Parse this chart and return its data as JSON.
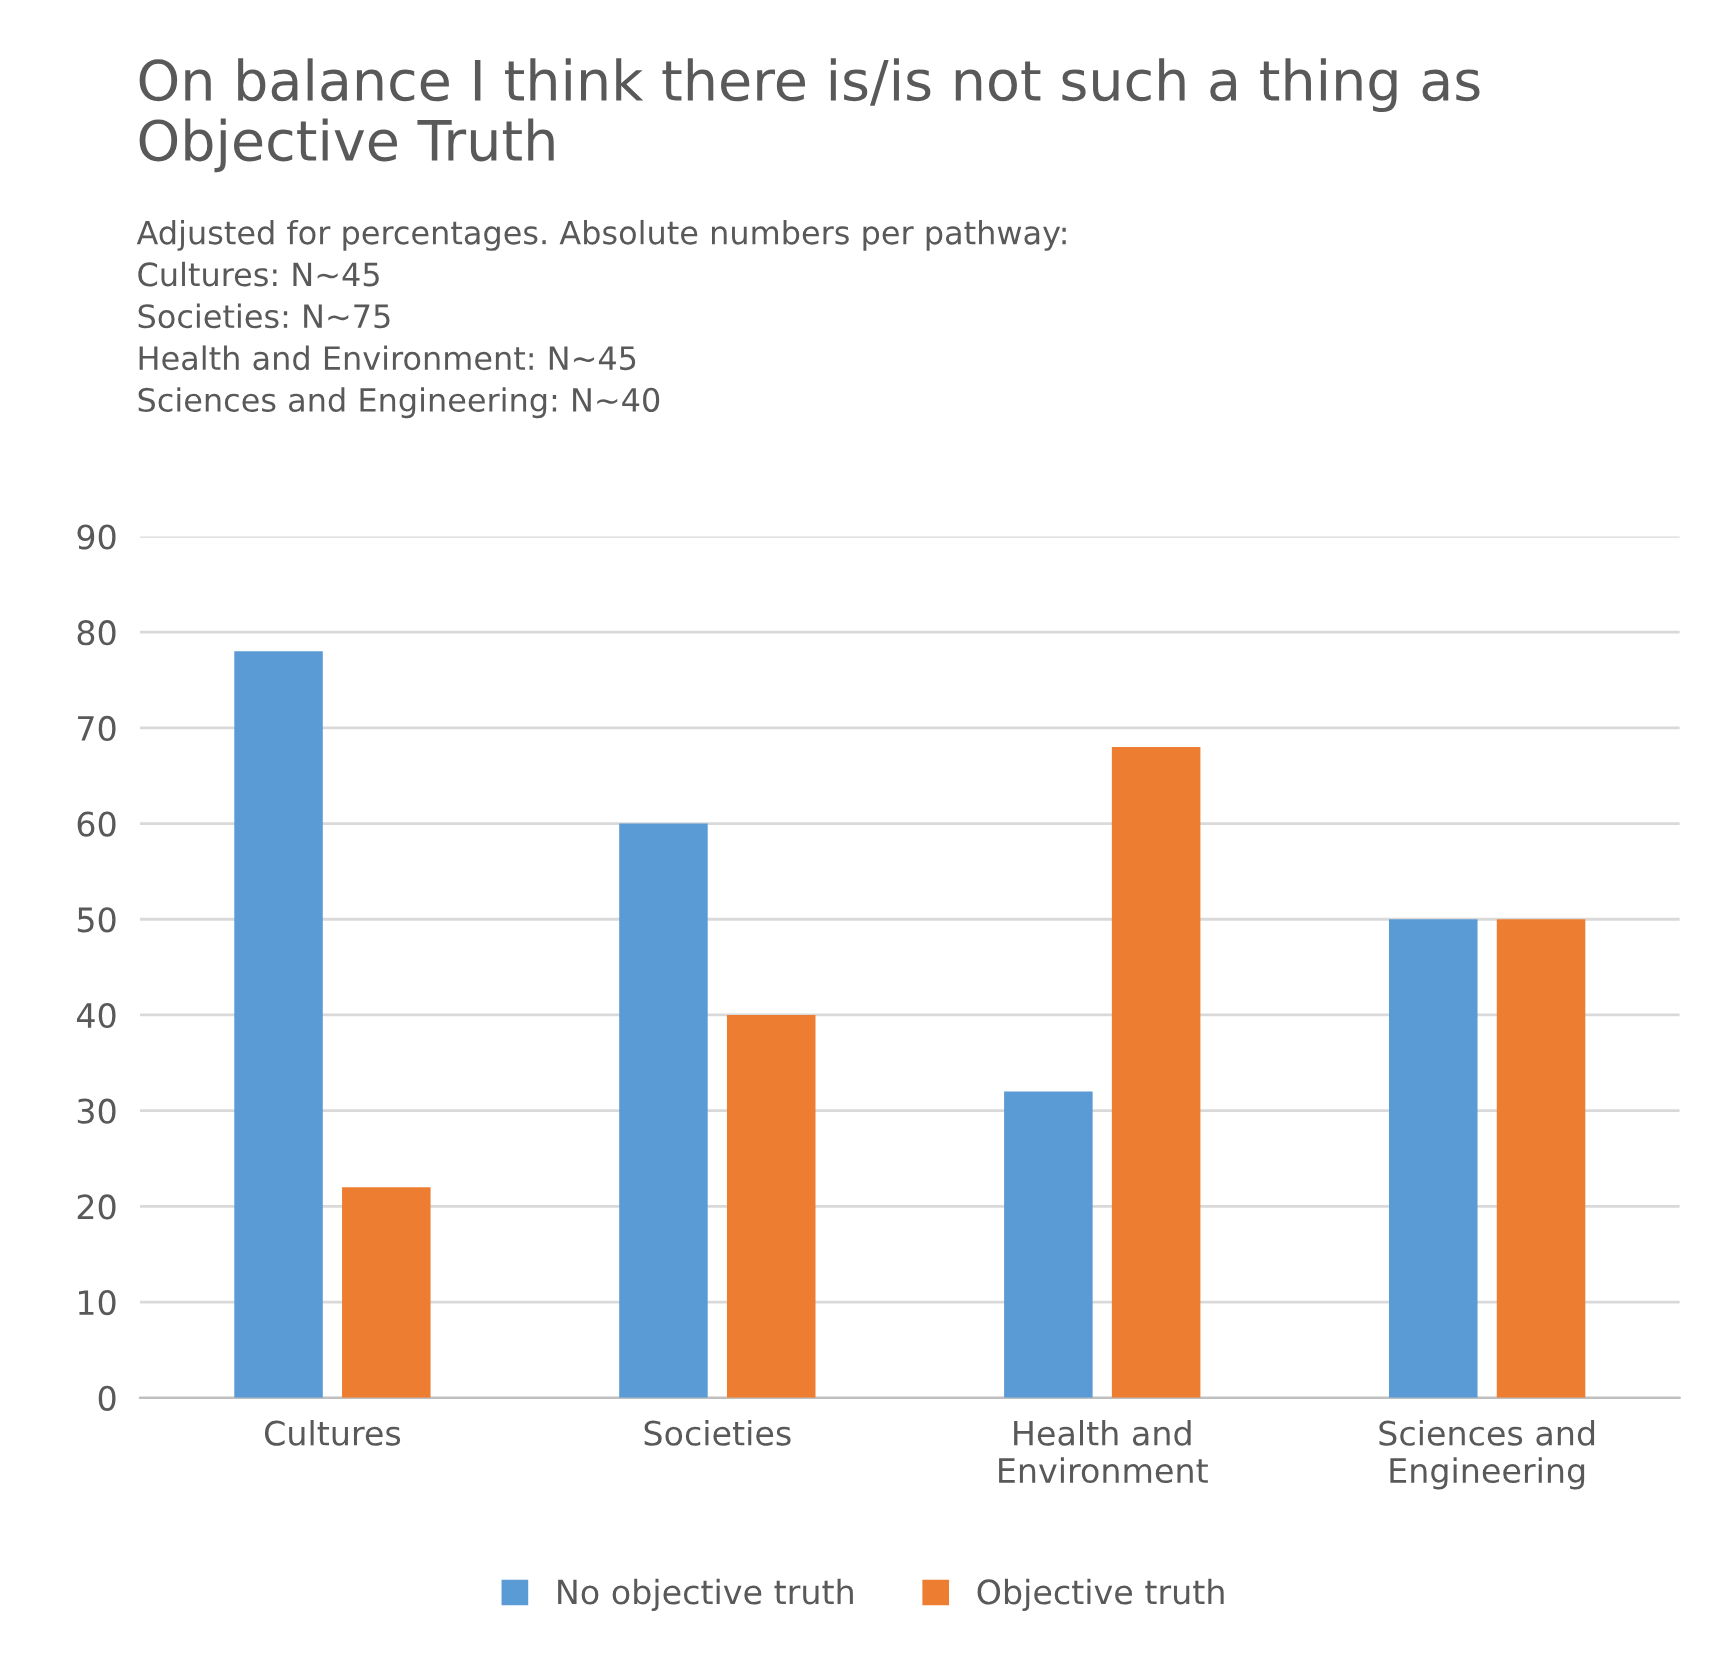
{
  "chart_data": {
    "type": "bar",
    "title": "On balance I think there is/is not such a thing as\nObjective Truth",
    "subtitle": "Adjusted for percentages. Absolute numbers per pathway:\nCultures: N~45\nSocieties: N~75\nHealth and Environment: N~45\nSciences and Engineering: N~40",
    "categories": [
      "Cultures",
      "Societies",
      "Health and\nEnvironment",
      "Sciences and\nEngineering"
    ],
    "series": [
      {
        "name": "No objective truth",
        "color": "#5b9bd5",
        "values": [
          78,
          60,
          32,
          50
        ]
      },
      {
        "name": "Objective truth",
        "color": "#ed7d31",
        "values": [
          22,
          40,
          68,
          50
        ]
      }
    ],
    "ylim": [
      0,
      90
    ],
    "yticks": [
      0,
      10,
      20,
      30,
      40,
      50,
      60,
      70,
      80,
      90
    ],
    "grid": "y",
    "legend": "bottom"
  }
}
